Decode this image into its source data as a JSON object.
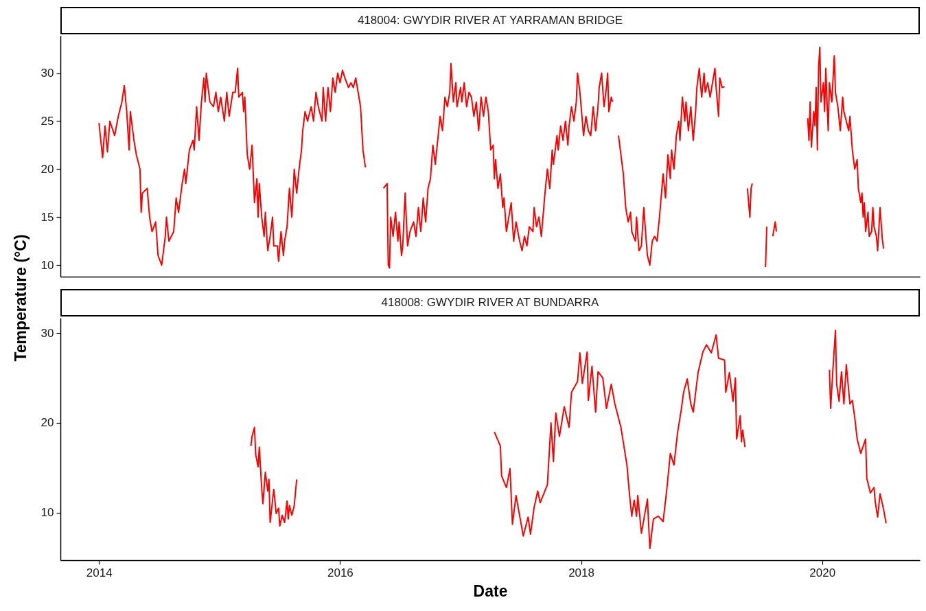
{
  "chart_data": [
    {
      "type": "line",
      "title": "418004: GWYDIR RIVER AT YARRAMAN BRIDGE",
      "ylabel": "Temperature (°C)",
      "color": "#ff0000",
      "xlim": [
        2013.68,
        2020.81
      ],
      "xticks": [
        2014,
        2016,
        2018,
        2020
      ],
      "ylim": [
        8.8,
        33.9
      ],
      "yticks": [
        10,
        15,
        20,
        25,
        30
      ],
      "tick_labels": "y",
      "x": [
        2014.0,
        2014.03,
        2014.05,
        2014.07,
        2014.09,
        2014.13,
        2014.16,
        2014.19,
        2014.21,
        2014.23,
        2014.25,
        2014.26,
        2014.29,
        2014.31,
        2014.34,
        2014.35,
        2014.36,
        2014.4,
        2014.42,
        2014.44,
        2014.47,
        2014.49,
        2014.52,
        2014.55,
        2014.56,
        2014.58,
        2014.62,
        2014.64,
        2014.66,
        2014.69,
        2014.71,
        2014.72,
        2014.75,
        2014.78,
        2014.79,
        2014.81,
        2014.83,
        2014.85,
        2014.87,
        2014.88,
        2014.89,
        2014.92,
        2014.95,
        2014.97,
        2014.99,
        2015.01,
        2015.04,
        2015.06,
        2015.08,
        2015.11,
        2015.13,
        2015.15,
        2015.16,
        2015.19,
        2015.2,
        2015.21,
        2015.23,
        2015.25,
        2015.27,
        2015.29,
        2015.31,
        2015.32,
        2015.33,
        2015.35,
        2015.37,
        2015.38,
        2015.4,
        2015.42,
        2015.44,
        2015.45,
        2015.48,
        2015.49,
        2015.51,
        2015.53,
        2015.54,
        2015.56,
        2015.58,
        2015.6,
        2015.62,
        2015.64,
        2015.66,
        2015.68,
        2015.69,
        2015.71,
        2015.73,
        2015.76,
        2015.78,
        2015.8,
        2015.82,
        2015.85,
        2015.86,
        2015.88,
        2015.9,
        2015.92,
        2015.94,
        2015.96,
        2015.98,
        2016.0,
        2016.02,
        2016.04,
        2016.07,
        2016.09,
        2016.11,
        2016.13,
        2016.15,
        2016.17,
        2016.19,
        2016.21,
        2016.28,
        2016.36,
        2016.39,
        2016.4,
        2016.41,
        2016.42,
        2016.44,
        2016.46,
        2016.48,
        2016.49,
        2016.51,
        2016.52,
        2016.54,
        2016.56,
        2016.58,
        2016.61,
        2016.63,
        2016.65,
        2016.67,
        2016.69,
        2016.71,
        2016.73,
        2016.75,
        2016.77,
        2016.79,
        2016.81,
        2016.83,
        2016.85,
        2016.87,
        2016.89,
        2016.91,
        2016.92,
        2016.94,
        2016.96,
        2016.97,
        2017.0,
        2017.01,
        2017.03,
        2017.05,
        2017.07,
        2017.09,
        2017.11,
        2017.13,
        2017.15,
        2017.17,
        2017.19,
        2017.21,
        2017.23,
        2017.25,
        2017.27,
        2017.28,
        2017.29,
        2017.31,
        2017.33,
        2017.35,
        2017.36,
        2017.38,
        2017.4,
        2017.42,
        2017.44,
        2017.46,
        2017.49,
        2017.51,
        2017.53,
        2017.55,
        2017.57,
        2017.6,
        2017.61,
        2017.63,
        2017.65,
        2017.67,
        2017.69,
        2017.7,
        2017.72,
        2017.74,
        2017.76,
        2017.77,
        2017.8,
        2017.81,
        2017.83,
        2017.85,
        2017.87,
        2017.89,
        2017.9,
        2017.92,
        2017.94,
        2017.96,
        2017.97,
        2017.99,
        2018.01,
        2018.02,
        2018.04,
        2018.06,
        2018.08,
        2018.1,
        2018.12,
        2018.14,
        2018.15,
        2018.17,
        2018.19,
        2018.21,
        2018.22,
        2018.23,
        2018.25,
        2018.26,
        2018.29,
        2018.31,
        2018.34,
        2018.35,
        2018.37,
        2018.39,
        2018.41,
        2018.42,
        2018.45,
        2018.46,
        2018.48,
        2018.5,
        2018.52,
        2018.54,
        2018.55,
        2018.57,
        2018.59,
        2018.61,
        2018.63,
        2018.65,
        2018.67,
        2018.68,
        2018.7,
        2018.72,
        2018.74,
        2018.75,
        2018.77,
        2018.79,
        2018.81,
        2018.82,
        2018.84,
        2018.86,
        2018.87,
        2018.89,
        2018.91,
        2018.93,
        2018.95,
        2018.96,
        2018.98,
        2019.0,
        2019.02,
        2019.03,
        2019.05,
        2019.07,
        2019.09,
        2019.11,
        2019.12,
        2019.14,
        2019.15,
        2019.17,
        2019.19,
        2019.24,
        2019.38,
        2019.4,
        2019.41,
        2019.42,
        2019.46,
        2019.53,
        2019.54,
        2019.56,
        2019.59,
        2019.61,
        2019.62,
        2019.75,
        2019.88,
        2019.89,
        2019.9,
        2019.91,
        2019.93,
        2019.94,
        2019.95,
        2019.96,
        2019.97,
        2019.98,
        2019.99,
        2020.01,
        2020.02,
        2020.03,
        2020.04,
        2020.05,
        2020.06,
        2020.08,
        2020.1,
        2020.11,
        2020.13,
        2020.15,
        2020.17,
        2020.18,
        2020.2,
        2020.22,
        2020.23,
        2020.25,
        2020.27,
        2020.29,
        2020.3,
        2020.32,
        2020.33,
        2020.34,
        2020.35,
        2020.36,
        2020.38,
        2020.39,
        2020.41,
        2020.42,
        2020.43,
        2020.45,
        2020.46,
        2020.48,
        2020.5,
        2020.51
      ],
      "values": [
        24.8,
        21.2,
        24.5,
        21.8,
        25,
        23.5,
        25.5,
        27,
        28.7,
        26,
        22,
        26,
        23,
        21.5,
        20,
        15.5,
        17.5,
        18,
        15,
        13.5,
        14.5,
        11,
        10,
        13,
        15,
        12.5,
        13.5,
        17,
        15.5,
        18.5,
        20,
        18.5,
        22,
        23,
        22,
        26.5,
        23,
        27,
        29.5,
        27,
        30,
        27,
        26.5,
        28,
        26,
        27.5,
        25,
        28,
        25.5,
        28,
        28,
        30.5,
        27.5,
        28,
        26,
        27.5,
        21.5,
        20,
        22.5,
        16.5,
        19,
        15,
        18.5,
        15,
        13,
        15.5,
        11.5,
        13,
        15,
        12,
        12,
        10.4,
        13.5,
        11,
        12.5,
        14,
        18,
        15,
        20,
        17.5,
        20,
        22,
        24,
        26,
        25,
        26.5,
        25,
        28,
        26.5,
        25,
        28.5,
        25,
        28.5,
        26,
        29.5,
        28,
        30,
        29,
        30.3,
        29.5,
        28.5,
        29,
        28.5,
        29.5,
        28,
        26.5,
        22,
        20.2,
        null,
        18,
        18.5,
        10,
        9.7,
        15,
        13,
        15.5,
        12.5,
        14.5,
        11,
        12,
        17.5,
        12,
        13.5,
        14.5,
        13,
        16,
        13.5,
        17,
        14.5,
        18,
        19,
        22.5,
        20.5,
        23,
        25.5,
        24,
        27.5,
        26.5,
        28,
        31,
        27,
        29,
        26.5,
        28.5,
        27,
        29,
        26.5,
        28,
        27.5,
        25.5,
        27,
        24,
        27.5,
        25.5,
        27.5,
        26,
        22,
        22.5,
        19,
        21,
        18,
        19.5,
        16,
        17,
        13.5,
        15,
        16.5,
        12.5,
        14.5,
        12.5,
        11.5,
        13,
        12,
        14,
        13.5,
        16,
        14,
        15,
        13,
        16,
        17.5,
        20,
        18,
        22,
        20.5,
        23.5,
        22,
        24.5,
        23,
        25,
        22.5,
        24.5,
        26.5,
        25,
        27,
        30,
        28,
        25,
        23.5,
        25.5,
        24,
        23.5,
        26.5,
        24,
        26.5,
        28.5,
        30,
        26.5,
        28.5,
        30,
        26,
        27.5,
        27,
        null,
        23.5,
        20.5,
        19.5,
        16,
        14.5,
        15.5,
        13.5,
        12.5,
        15,
        11.5,
        12,
        16,
        12.5,
        11,
        10,
        12.5,
        13,
        12.5,
        15,
        18,
        19.5,
        17,
        21.5,
        19,
        22,
        20,
        23.5,
        25,
        23,
        27.5,
        25,
        27,
        24,
        26.5,
        23,
        26,
        28.5,
        30.5,
        27.5,
        30,
        28,
        29,
        27.5,
        29,
        30.5,
        28.5,
        25.5,
        29.5,
        28.5,
        28.6,
        null,
        18,
        15,
        18,
        18.5,
        null,
        9.8,
        14,
        null,
        13,
        14.5,
        13.5,
        null,
        25.3,
        23,
        27,
        22.3,
        26,
        24.5,
        28.5,
        22,
        30.5,
        32.7,
        27,
        29,
        26,
        30.5,
        27,
        24,
        29,
        27,
        31.8,
        28,
        26.5,
        24,
        27.5,
        26,
        25,
        24,
        25.5,
        22,
        20,
        21,
        18,
        16.5,
        17.5,
        15,
        16.5,
        13.5,
        15.5,
        13,
        13.5,
        16,
        14,
        13,
        11.5,
        16,
        12.5,
        11.7
      ]
    },
    {
      "type": "line",
      "title": "418008: GWYDIR RIVER AT BUNDARRA",
      "xlabel": "Date",
      "color": "#ff0000",
      "xlim": [
        2013.68,
        2020.81
      ],
      "xticks": [
        2014,
        2016,
        2018,
        2020
      ],
      "ylim": [
        4.7,
        31.7
      ],
      "yticks": [
        10,
        20,
        30
      ],
      "x": [
        2015.26,
        2015.27,
        2015.29,
        2015.3,
        2015.32,
        2015.33,
        2015.35,
        2015.36,
        2015.38,
        2015.4,
        2015.41,
        2015.42,
        2015.45,
        2015.47,
        2015.49,
        2015.5,
        2015.52,
        2015.54,
        2015.56,
        2015.57,
        2015.58,
        2015.6,
        2015.62,
        2015.64,
        2016.5,
        2017.28,
        2017.33,
        2017.34,
        2017.38,
        2017.41,
        2017.43,
        2017.46,
        2017.52,
        2017.56,
        2017.58,
        2017.61,
        2017.64,
        2017.66,
        2017.72,
        2017.75,
        2017.77,
        2017.79,
        2017.82,
        2017.86,
        2017.9,
        2017.92,
        2017.97,
        2017.99,
        2018.01,
        2018.05,
        2018.06,
        2018.09,
        2018.12,
        2018.14,
        2018.18,
        2018.21,
        2018.25,
        2018.28,
        2018.33,
        2018.38,
        2018.4,
        2018.42,
        2018.44,
        2018.46,
        2018.47,
        2018.5,
        2018.55,
        2018.57,
        2018.6,
        2018.64,
        2018.68,
        2018.71,
        2018.74,
        2018.77,
        2018.8,
        2018.83,
        2018.85,
        2018.88,
        2018.91,
        2018.93,
        2018.97,
        2019.01,
        2019.04,
        2019.08,
        2019.12,
        2019.14,
        2019.19,
        2019.2,
        2019.23,
        2019.26,
        2019.28,
        2019.29,
        2019.32,
        2019.33,
        2019.34,
        2019.36,
        2019.7,
        2020.06,
        2020.07,
        2020.09,
        2020.11,
        2020.12,
        2020.14,
        2020.16,
        2020.18,
        2020.2,
        2020.23,
        2020.25,
        2020.27,
        2020.29,
        2020.32,
        2020.36,
        2020.37,
        2020.4,
        2020.43,
        2020.44,
        2020.46,
        2020.48,
        2020.51,
        2020.53
      ],
      "values": [
        17.4,
        18.5,
        19.5,
        16.5,
        15.1,
        17.3,
        12.7,
        11.0,
        14.5,
        12.4,
        13.7,
        8.9,
        12.6,
        9.9,
        10.5,
        8.5,
        9.7,
        8.9,
        11.3,
        9.3,
        10.8,
        9.7,
        10.8,
        13.7,
        null,
        19.0,
        17.4,
        14.1,
        12.8,
        14.9,
        8.7,
        11.9,
        7.4,
        9.5,
        7.6,
        10.6,
        12.4,
        11.1,
        13.1,
        20.0,
        15.7,
        21.1,
        18.5,
        21.8,
        19.5,
        23.4,
        24.6,
        27.8,
        24.4,
        27.9,
        22.5,
        26.3,
        21.2,
        25.7,
        25.0,
        21.6,
        24.3,
        22.1,
        19.5,
        15.3,
        12.2,
        9.6,
        11.4,
        9.6,
        11.9,
        7.7,
        11.5,
        6.0,
        9.3,
        9.6,
        9.0,
        12.5,
        16.6,
        15.3,
        18.9,
        21.4,
        23.4,
        24.9,
        22.1,
        21.2,
        25.6,
        27.9,
        28.7,
        27.8,
        29.8,
        27.2,
        27.0,
        23.4,
        25.6,
        22.4,
        25.0,
        18.2,
        20.8,
        17.9,
        19.2,
        17.3,
        null,
        25.9,
        21.6,
        26.2,
        30.3,
        24.3,
        22.4,
        25.7,
        22.1,
        26.5,
        22.1,
        22.5,
        20.6,
        18.2,
        16.6,
        18.2,
        13.8,
        12.2,
        12.8,
        11.2,
        9.5,
        12.1,
        10.3,
        8.8
      ]
    }
  ]
}
